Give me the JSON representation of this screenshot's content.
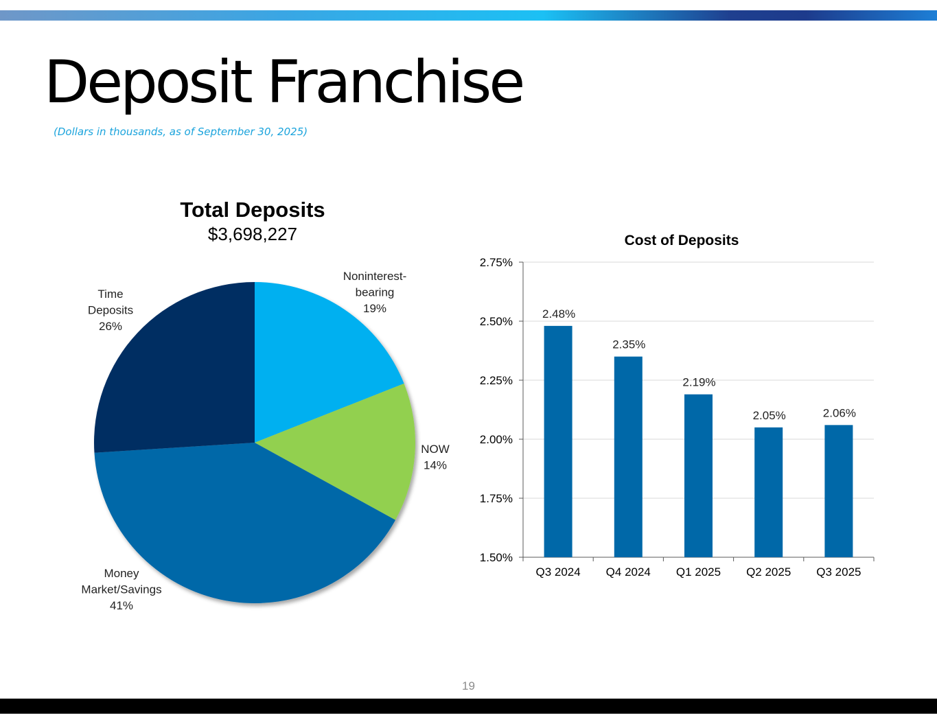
{
  "slide": {
    "title": "Deposit Franchise",
    "subtitle": "(Dollars in thousands, as of September 30, 2025)",
    "page_number": "19"
  },
  "pie": {
    "title": "Total Deposits",
    "total": "$3,698,227"
  },
  "colors": {
    "noninterest": "#00b0f0",
    "now": "#92d050",
    "money_market": "#0068a8",
    "time_deposits": "#002d62",
    "bar": "#0068a8",
    "subtitle": "#1aa3dc"
  },
  "chart_data": [
    {
      "type": "pie",
      "title": "Total Deposits",
      "slices": [
        {
          "label_lines": [
            "Noninterest-",
            "bearing"
          ],
          "pct_label": "19%",
          "value": 19,
          "color": "#00b0f0"
        },
        {
          "label_lines": [
            "NOW"
          ],
          "pct_label": "14%",
          "value": 14,
          "color": "#92d050"
        },
        {
          "label_lines": [
            "Money",
            "Market/Savings"
          ],
          "pct_label": "41%",
          "value": 41,
          "color": "#0068a8"
        },
        {
          "label_lines": [
            "Time",
            "Deposits"
          ],
          "pct_label": "26%",
          "value": 26,
          "color": "#002d62"
        }
      ]
    },
    {
      "type": "bar",
      "title": "Cost of Deposits",
      "categories": [
        "Q3 2024",
        "Q4 2024",
        "Q1 2025",
        "Q2 2025",
        "Q3 2025"
      ],
      "values": [
        2.48,
        2.35,
        2.19,
        2.05,
        2.06
      ],
      "value_labels": [
        "2.48%",
        "2.35%",
        "2.19%",
        "2.05%",
        "2.06%"
      ],
      "ylim": [
        1.5,
        2.75
      ],
      "yticks": [
        1.5,
        1.75,
        2.0,
        2.25,
        2.5,
        2.75
      ],
      "ytick_labels": [
        "1.50%",
        "1.75%",
        "2.00%",
        "2.25%",
        "2.50%",
        "2.75%"
      ],
      "grid": true,
      "color": "#0068a8"
    }
  ]
}
